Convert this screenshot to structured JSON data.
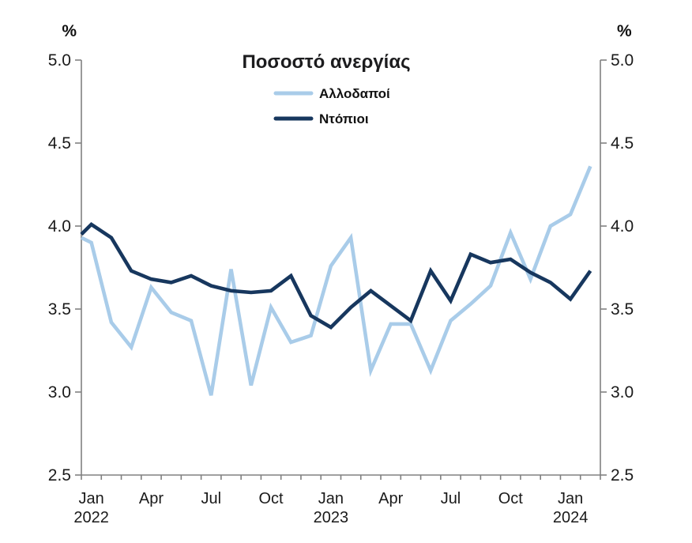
{
  "chart_data": {
    "type": "line",
    "title": "Ποσοστό ανεργίας",
    "unit_left": "%",
    "unit_right": "%",
    "ylim": [
      2.5,
      5.0
    ],
    "y_ticks": [
      2.5,
      3.0,
      3.5,
      4.0,
      4.5,
      5.0
    ],
    "y_tick_format_decimals": 1,
    "grid": false,
    "legend_position": "top-center",
    "axis_color": "#808080",
    "text_color": "#1a1a1a",
    "x_months": [
      "Jan 2022",
      "Feb 2022",
      "Mar 2022",
      "Apr 2022",
      "May 2022",
      "Jun 2022",
      "Jul 2022",
      "Aug 2022",
      "Sep 2022",
      "Oct 2022",
      "Nov 2022",
      "Dec 2022",
      "Jan 2023",
      "Feb 2023",
      "Mar 2023",
      "Apr 2023",
      "May 2023",
      "Jun 2023",
      "Jul 2023",
      "Aug 2023",
      "Sep 2023",
      "Oct 2023",
      "Nov 2023",
      "Dec 2023",
      "Jan 2024",
      "Feb 2024"
    ],
    "x_ticks": [
      {
        "label": "Jan",
        "year": "2022",
        "month_index": 0
      },
      {
        "label": "Apr",
        "year": "",
        "month_index": 3
      },
      {
        "label": "Jul",
        "year": "",
        "month_index": 6
      },
      {
        "label": "Oct",
        "year": "",
        "month_index": 9
      },
      {
        "label": "Jan",
        "year": "2023",
        "month_index": 12
      },
      {
        "label": "Apr",
        "year": "",
        "month_index": 15
      },
      {
        "label": "Jul",
        "year": "",
        "month_index": 18
      },
      {
        "label": "Oct",
        "year": "",
        "month_index": 21
      },
      {
        "label": "Jan",
        "year": "2024",
        "month_index": 24
      }
    ],
    "series": [
      {
        "id": "foreigners",
        "name": "Αλλοδαποί",
        "color": "#a9cce9",
        "clipped_entry_value_at_axis": 3.93,
        "values": [
          3.9,
          3.42,
          3.27,
          3.63,
          3.48,
          3.43,
          2.98,
          3.74,
          3.04,
          3.51,
          3.3,
          3.34,
          3.76,
          3.93,
          3.13,
          3.41,
          3.41,
          3.13,
          3.43,
          3.53,
          3.64,
          3.96,
          3.68,
          4.0,
          4.07,
          4.36
        ]
      },
      {
        "id": "natives",
        "name": "Ντόπιοι",
        "color": "#17375e",
        "clipped_entry_value_at_axis": 3.95,
        "values": [
          4.01,
          3.93,
          3.73,
          3.68,
          3.66,
          3.7,
          3.64,
          3.61,
          3.6,
          3.61,
          3.7,
          3.46,
          3.39,
          3.51,
          3.61,
          3.52,
          3.43,
          3.73,
          3.55,
          3.83,
          3.78,
          3.8,
          3.72,
          3.66,
          3.56,
          3.73
        ]
      }
    ]
  }
}
